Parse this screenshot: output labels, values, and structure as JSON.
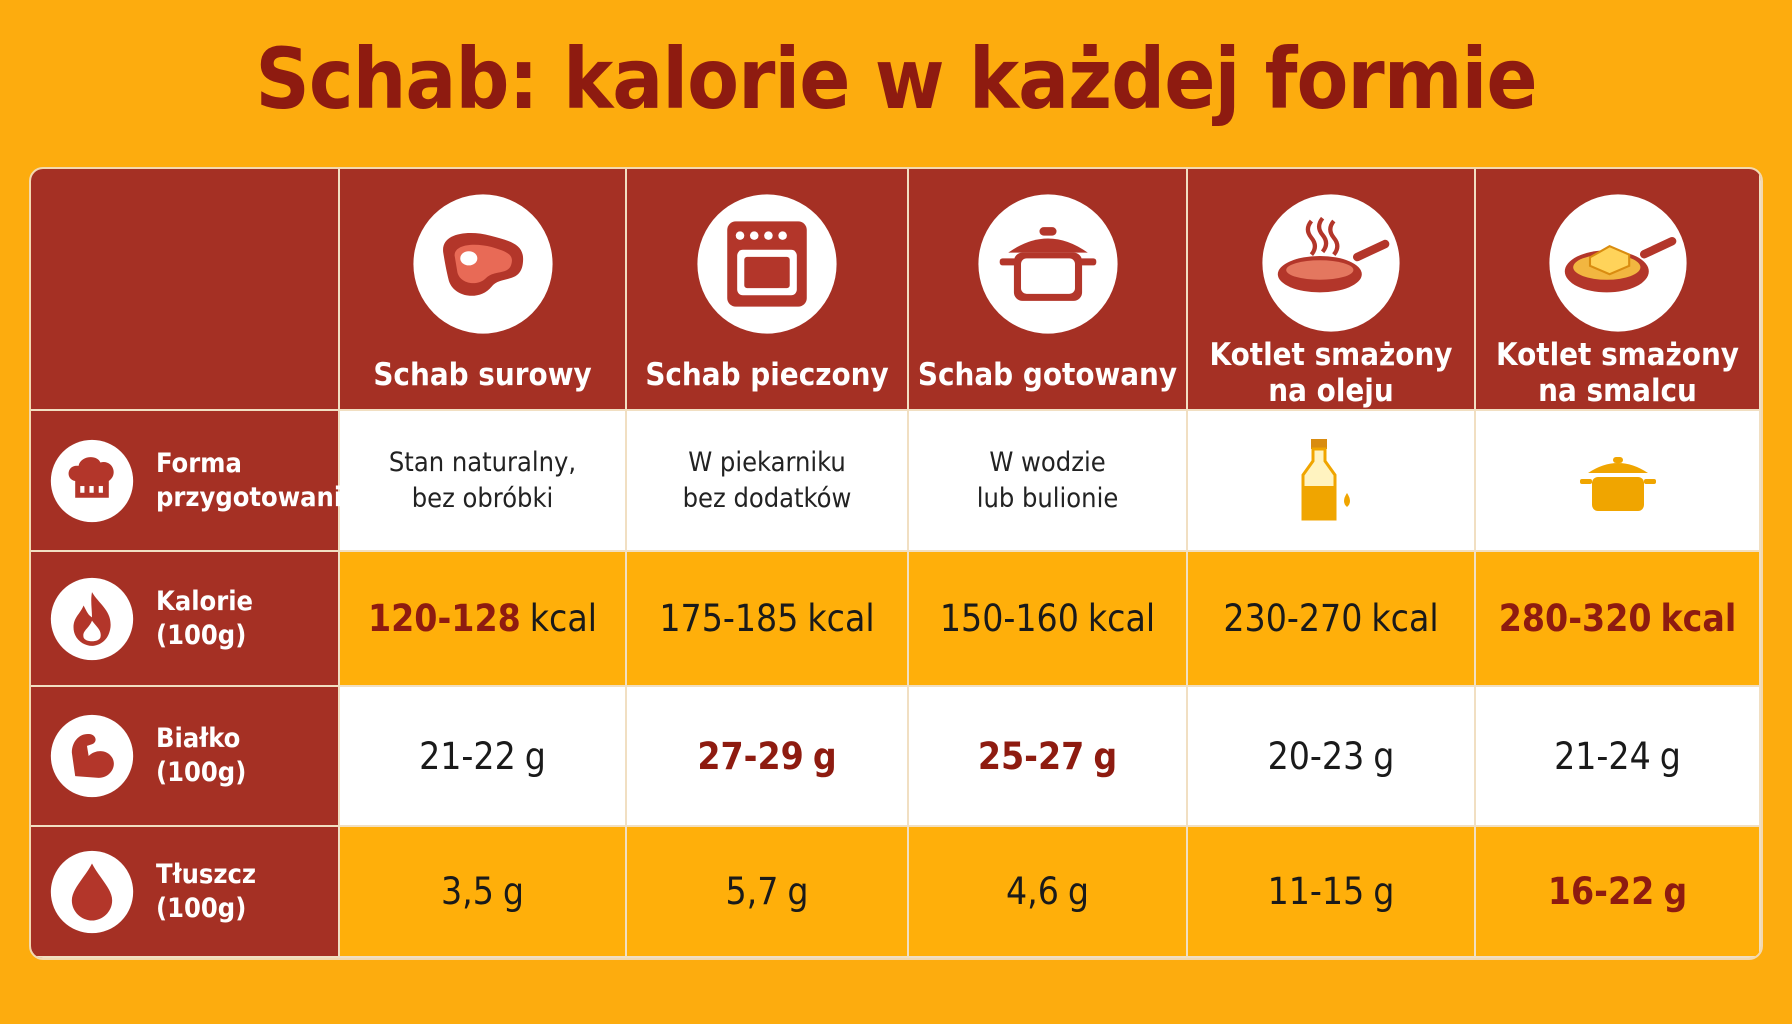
{
  "title": "Schab: kalorie w każdej formie",
  "columns": [
    [
      "Schab surowy"
    ],
    [
      "Schab pieczony"
    ],
    [
      "Schab gotowany"
    ],
    [
      "Kotlet smażony",
      "na oleju"
    ],
    [
      "Kotlet smażony",
      "na smalcu"
    ]
  ],
  "rows": [
    {
      "label": [
        "Forma",
        "przygotowania"
      ],
      "cells": [
        [
          "Stan naturalny,",
          "bez obróbki"
        ],
        [
          "W piekarniku",
          "bez dodatków"
        ],
        [
          "W wodzie",
          "lub bulionie"
        ],
        null,
        null
      ]
    },
    {
      "label": [
        "Kalorie",
        "(100g)"
      ],
      "cells": [
        {
          "value": "120-128",
          "unit": "kcal",
          "emphasis": "value"
        },
        {
          "value": "175-185",
          "unit": "kcal",
          "emphasis": "none"
        },
        {
          "value": "150-160",
          "unit": "kcal",
          "emphasis": "none"
        },
        {
          "value": "230-270",
          "unit": "kcal",
          "emphasis": "none"
        },
        {
          "value": "280-320",
          "unit": "kcal",
          "emphasis": "all"
        }
      ]
    },
    {
      "label": [
        "Białko",
        "(100g)"
      ],
      "cells": [
        {
          "value": "21-22",
          "unit": "g",
          "emphasis": "none"
        },
        {
          "value": "27-29",
          "unit": "g",
          "emphasis": "all"
        },
        {
          "value": "25-27",
          "unit": "g",
          "emphasis": "all"
        },
        {
          "value": "20-23",
          "unit": "g",
          "emphasis": "none"
        },
        {
          "value": "21-24",
          "unit": "g",
          "emphasis": "none"
        }
      ]
    },
    {
      "label": [
        "Tłuszcz",
        "(100g)"
      ],
      "cells": [
        {
          "value": "3,5",
          "unit": "g",
          "emphasis": "none"
        },
        {
          "value": "5,7",
          "unit": "g",
          "emphasis": "none"
        },
        {
          "value": "4,6",
          "unit": "g",
          "emphasis": "none"
        },
        {
          "value": "11-15",
          "unit": "g",
          "emphasis": "none"
        },
        {
          "value": "16-22",
          "unit": "g",
          "emphasis": "all"
        }
      ]
    }
  ]
}
